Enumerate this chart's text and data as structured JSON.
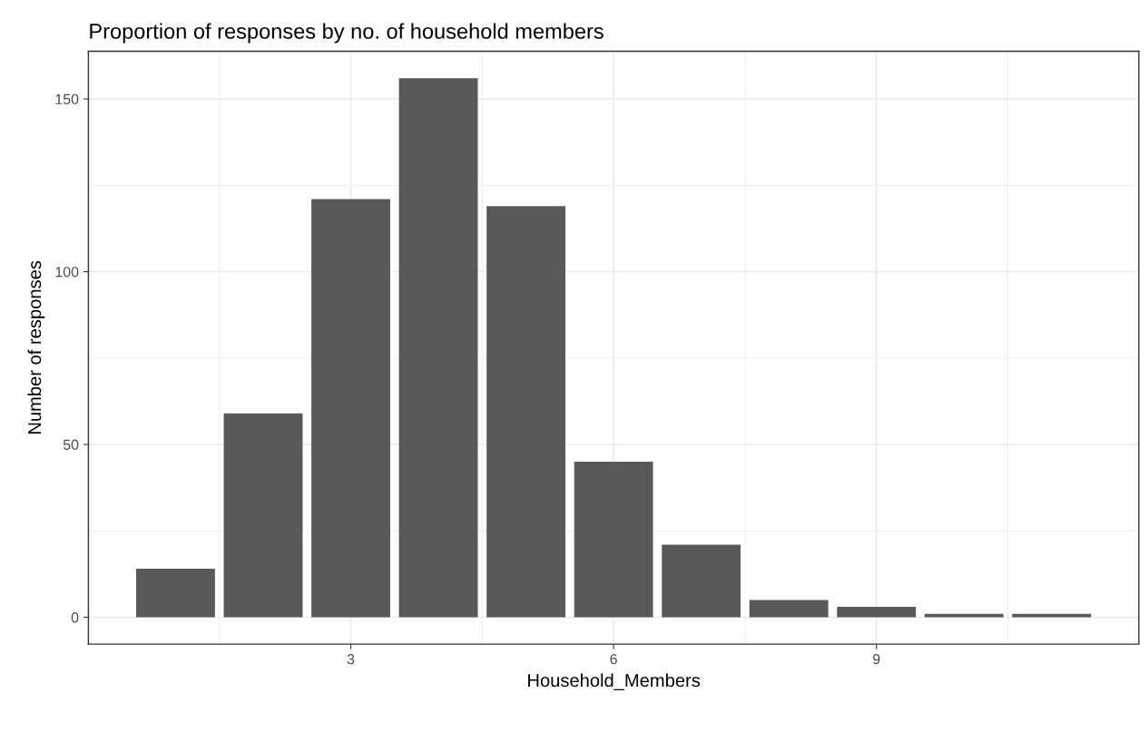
{
  "chart_data": {
    "type": "bar",
    "title": "Proportion of responses by no. of household members",
    "xlabel": "Household_Members",
    "ylabel": "Number of responses",
    "x": [
      1,
      2,
      3,
      4,
      5,
      6,
      7,
      8,
      9,
      10,
      11
    ],
    "values": [
      14,
      59,
      121,
      156,
      119,
      45,
      21,
      5,
      3,
      1,
      1
    ],
    "color": "#595959",
    "xlim": [
      0.005,
      11.995
    ],
    "xticks": [
      3,
      6,
      9
    ],
    "ylim": [
      -7.8,
      163.8
    ],
    "yticks": [
      0,
      50,
      100,
      150
    ],
    "grid": true
  }
}
